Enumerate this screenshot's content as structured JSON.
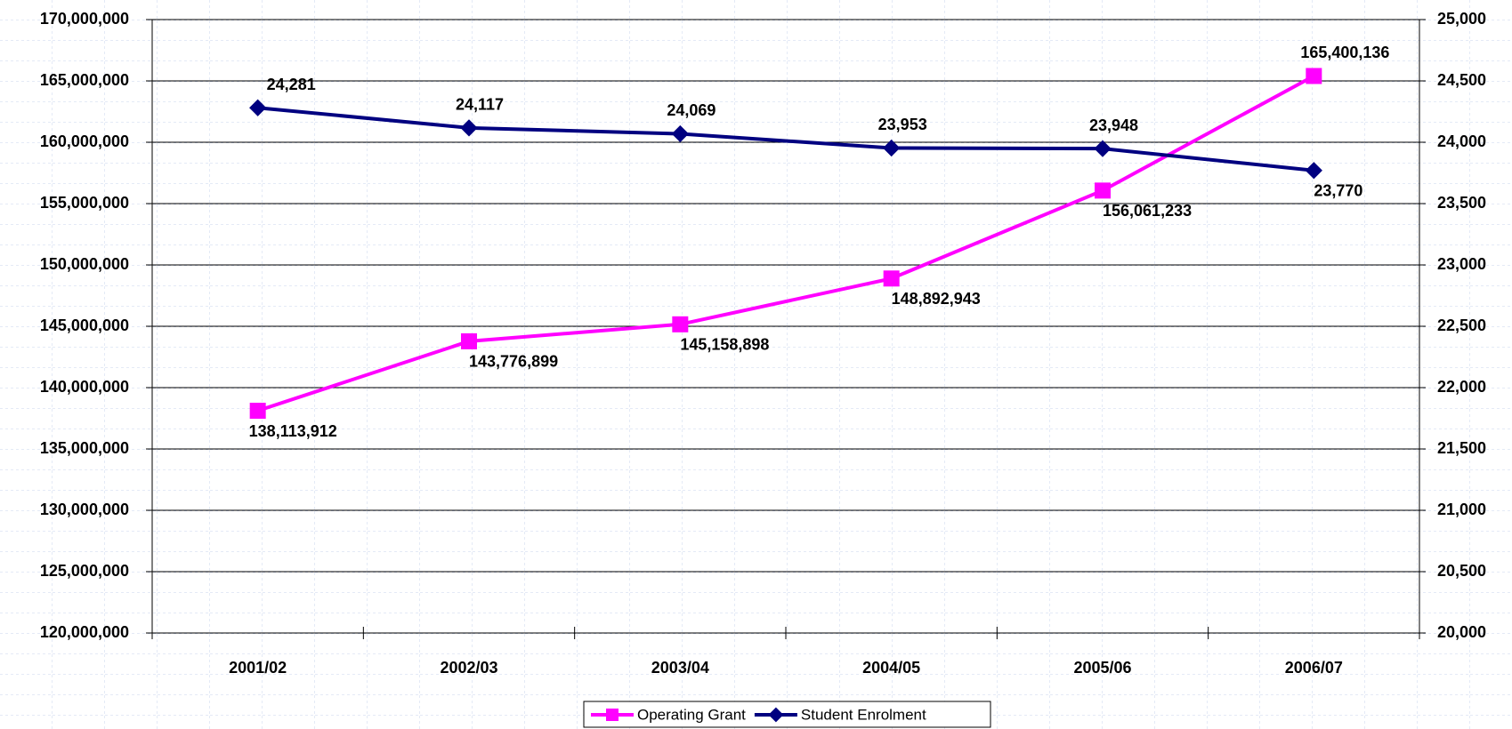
{
  "chart_data": {
    "type": "line",
    "categories": [
      "2001/02",
      "2002/03",
      "2003/04",
      "2004/05",
      "2005/06",
      "2006/07"
    ],
    "series": [
      {
        "name": "Operating Grant",
        "color": "#ff00ff",
        "marker": "square",
        "values": [
          138113912,
          143776899,
          145158898,
          148892943,
          156061233,
          165400136
        ],
        "value_labels": [
          "138,113,912",
          "143,776,899",
          "145,158,898",
          "148,892,943",
          "156,061,233",
          "165,400,136"
        ]
      },
      {
        "name": "Student Enrolment",
        "color": "#000080",
        "marker": "diamond",
        "axis": "y2",
        "values": [
          24281,
          24117,
          24069,
          23953,
          23948,
          23770
        ],
        "value_labels": [
          "24,281",
          "24,117",
          "24,069",
          "23,953",
          "23,948",
          "23,770"
        ]
      }
    ],
    "ylim": [
      120000000,
      170000000
    ],
    "yticks": [
      {
        "value": 120000000,
        "label": "120,000,000"
      },
      {
        "value": 125000000,
        "label": "125,000,000"
      },
      {
        "value": 130000000,
        "label": "130,000,000"
      },
      {
        "value": 135000000,
        "label": "135,000,000"
      },
      {
        "value": 140000000,
        "label": "140,000,000"
      },
      {
        "value": 145000000,
        "label": "145,000,000"
      },
      {
        "value": 150000000,
        "label": "150,000,000"
      },
      {
        "value": 155000000,
        "label": "155,000,000"
      },
      {
        "value": 160000000,
        "label": "160,000,000"
      },
      {
        "value": 165000000,
        "label": "165,000,000"
      },
      {
        "value": 170000000,
        "label": "170,000,000"
      }
    ],
    "y2lim": [
      20000,
      25000
    ],
    "y2ticks": [
      {
        "value": 20000,
        "label": "20,000"
      },
      {
        "value": 20500,
        "label": "20,500"
      },
      {
        "value": 21000,
        "label": "21,000"
      },
      {
        "value": 21500,
        "label": "21,500"
      },
      {
        "value": 22000,
        "label": "22,000"
      },
      {
        "value": 22500,
        "label": "22,500"
      },
      {
        "value": 23000,
        "label": "23,000"
      },
      {
        "value": 23500,
        "label": "23,500"
      },
      {
        "value": 24000,
        "label": "24,000"
      },
      {
        "value": 24500,
        "label": "24,500"
      },
      {
        "value": 25000,
        "label": "25,000"
      }
    ],
    "grid": true,
    "legend": "bottom"
  }
}
